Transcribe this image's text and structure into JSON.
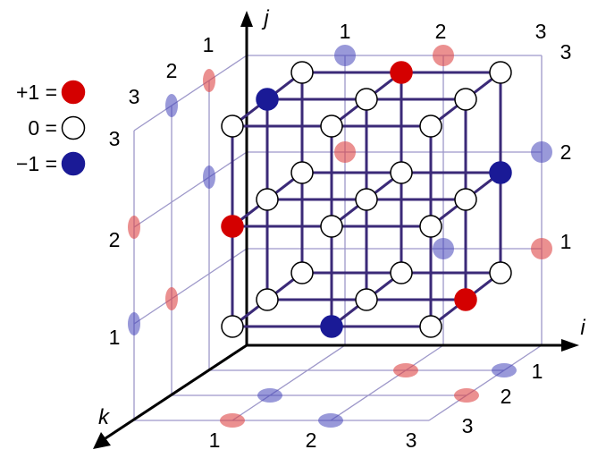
{
  "legend": {
    "items": [
      {
        "label": "+1 =",
        "value": 1
      },
      {
        "label": "0 =",
        "value": 0
      },
      {
        "label": "−1 =",
        "value": -1
      }
    ]
  },
  "axes": {
    "i": "i",
    "j": "j",
    "k": "k"
  },
  "ticks": {
    "back_top_i": [
      "1",
      "2",
      "3"
    ],
    "back_right_j": [
      "1",
      "2",
      "3"
    ],
    "left_top_k": [
      "1",
      "2",
      "3"
    ],
    "left_side_j": [
      "1",
      "2",
      "3"
    ],
    "floor_bottom_i": [
      "1",
      "2",
      "3"
    ],
    "floor_right_k": [
      "1",
      "2",
      "3"
    ]
  },
  "colors": {
    "positive": "#d40000",
    "zero": "#ffffff",
    "negative": "#1a1a96",
    "lattice": "#3b2a78",
    "guide": "#9d97c9"
  },
  "nonzero_elements": [
    {
      "i": 1,
      "j": 2,
      "k": 3,
      "value": 1
    },
    {
      "i": 2,
      "j": 3,
      "k": 1,
      "value": 1
    },
    {
      "i": 3,
      "j": 1,
      "k": 2,
      "value": 1
    },
    {
      "i": 1,
      "j": 3,
      "k": 2,
      "value": -1
    },
    {
      "i": 3,
      "j": 2,
      "k": 1,
      "value": -1
    },
    {
      "i": 2,
      "j": 1,
      "k": 3,
      "value": -1
    }
  ]
}
